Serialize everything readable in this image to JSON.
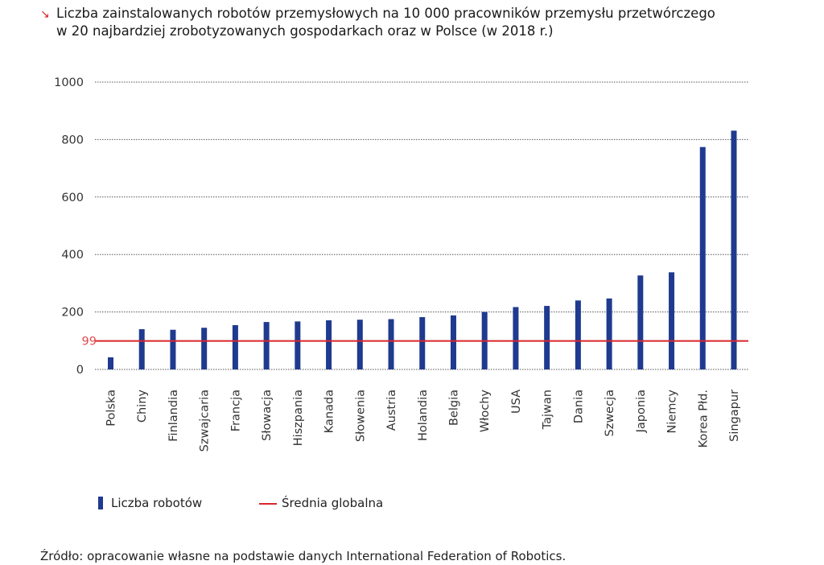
{
  "title": {
    "arrow": "↘",
    "line1": "Liczba zainstalowanych robotów przemysłowych na 10 000 pracowników przemysłu przetwórczego",
    "line2": "w 20 najbardziej zrobotyzowanych gospodarkach oraz w Polsce (w 2018 r.)"
  },
  "chart_data": {
    "type": "bar",
    "categories": [
      "Polska",
      "Chiny",
      "Finlandia",
      "Szwajcaria",
      "Francja",
      "Słowacja",
      "Hiszpania",
      "Kanada",
      "Słowenia",
      "Austria",
      "Holandia",
      "Belgia",
      "Włochy",
      "USA",
      "Tajwan",
      "Dania",
      "Szwecja",
      "Japonia",
      "Niemcy",
      "Korea Płd.",
      "Singapur"
    ],
    "series": [
      {
        "name": "Liczba robotów",
        "values": [
          42,
          140,
          138,
          145,
          154,
          165,
          167,
          171,
          173,
          175,
          182,
          188,
          200,
          217,
          221,
          240,
          247,
          327,
          338,
          774,
          831
        ]
      }
    ],
    "average": {
      "name": "Średnia globalna",
      "value": 99,
      "label": "99"
    },
    "yticks": [
      0,
      200,
      400,
      600,
      800,
      1000
    ],
    "ylim": [
      0,
      1000
    ],
    "grid": true,
    "legend_position": "bottom-left",
    "colors": {
      "bars": "#1f3a8f",
      "average": "#d9262b",
      "average_label": "#e24a4f",
      "grid": "#555555"
    }
  },
  "legend": {
    "bars_label": "Liczba robotów",
    "average_label": "Średnia globalna"
  },
  "source": "Źródło: opracowanie własne na podstawie danych International Federation of Robotics."
}
